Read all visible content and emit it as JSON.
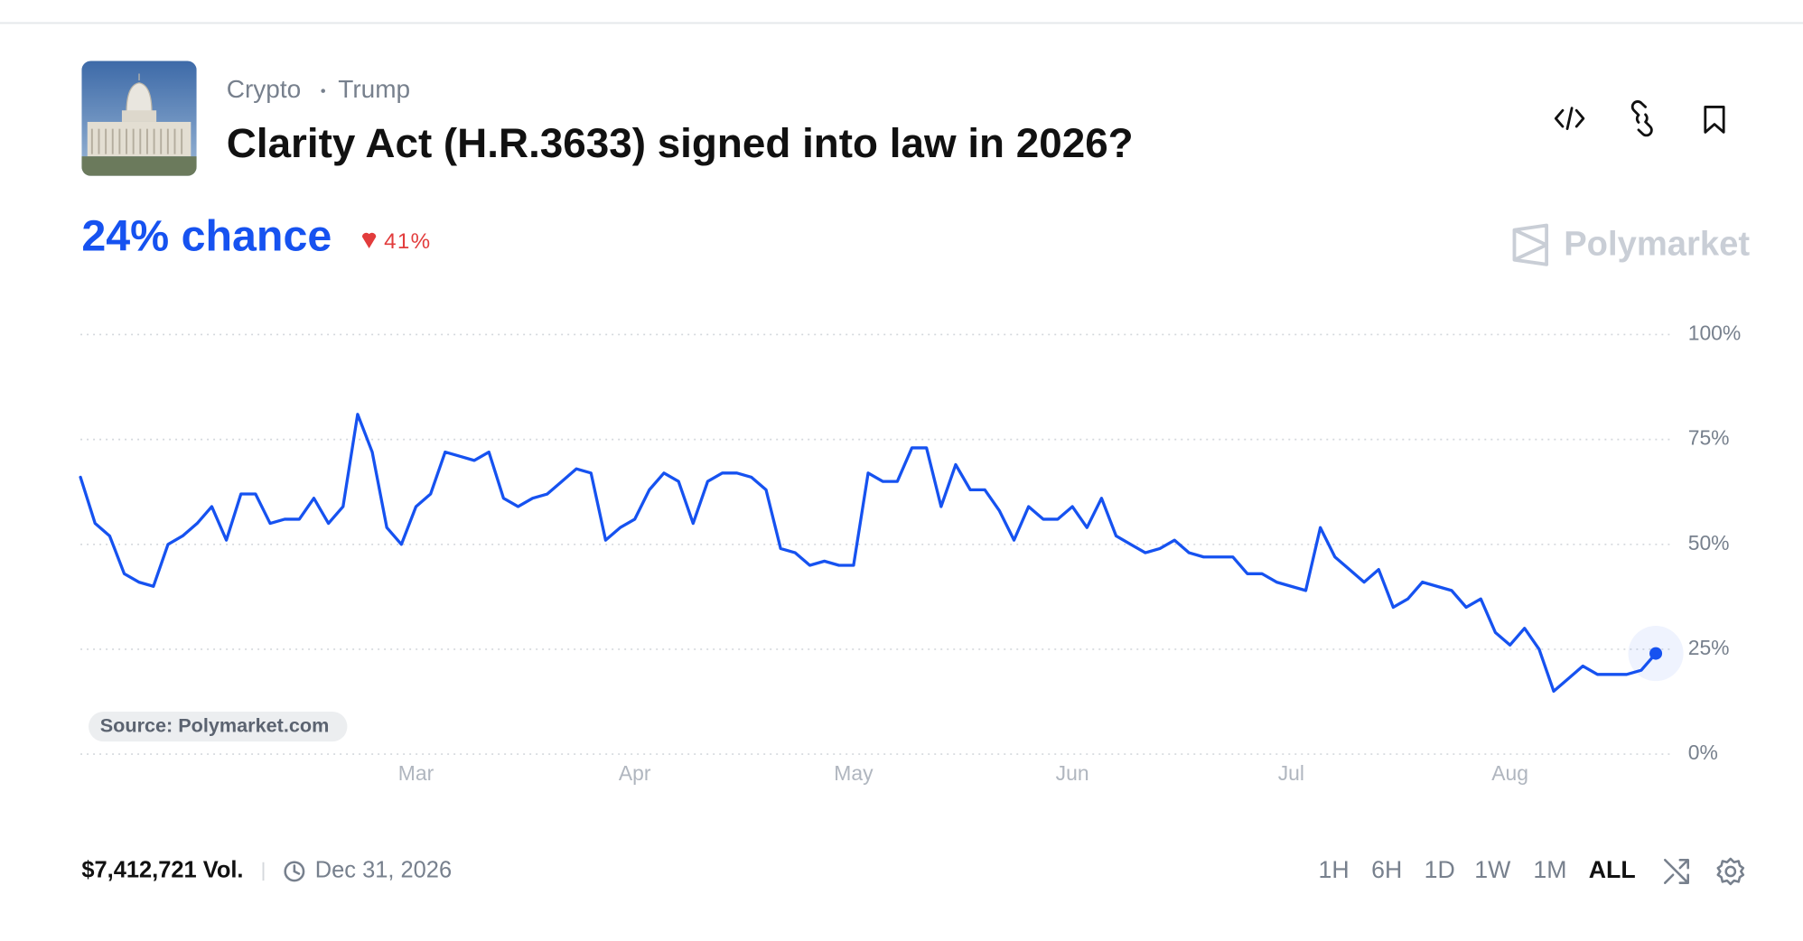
{
  "header": {
    "categories": [
      "Crypto",
      "Trump"
    ],
    "title": "Clarity Act (H.R.3633) signed into law in 2026?"
  },
  "chance": {
    "label": "24% chance",
    "change": "41%"
  },
  "brand": "Polymarket",
  "source": "Source: Polymarket.com",
  "footer": {
    "volume": "$7,412,721 Vol.",
    "end_date": "Dec 31, 2026",
    "ranges": [
      "1H",
      "6H",
      "1D",
      "1W",
      "1M",
      "ALL"
    ],
    "selected_range": "ALL"
  },
  "chart_data": {
    "type": "line",
    "categories": [
      null,
      null,
      null,
      null,
      null,
      null,
      null,
      null,
      null,
      null,
      null,
      null,
      null,
      null,
      null,
      null,
      null,
      null,
      null,
      null,
      null,
      null,
      null,
      "Mar",
      null,
      null,
      null,
      null,
      null,
      null,
      null,
      null,
      null,
      null,
      null,
      null,
      null,
      null,
      "Apr",
      null,
      null,
      null,
      null,
      null,
      null,
      null,
      null,
      null,
      null,
      null,
      null,
      null,
      null,
      "May",
      null,
      null,
      null,
      null,
      null,
      null,
      null,
      null,
      null,
      null,
      null,
      null,
      null,
      null,
      "Jun",
      null,
      null,
      null,
      null,
      null,
      null,
      null,
      null,
      null,
      null,
      null,
      null,
      null,
      null,
      "Jul",
      null,
      null,
      null,
      null,
      null,
      null,
      null,
      null,
      null,
      null,
      null,
      null,
      null,
      null,
      "Aug",
      null,
      null,
      null,
      null,
      null,
      null,
      null,
      null,
      null,
      null
    ],
    "series": [
      {
        "color": "#1652f0",
        "values": [
          66,
          55,
          52,
          43,
          41,
          40,
          50,
          52,
          55,
          59,
          51,
          62,
          62,
          55,
          56,
          56,
          61,
          55,
          59,
          81,
          72,
          54,
          50,
          59,
          62,
          72,
          71,
          70,
          72,
          61,
          59,
          61,
          62,
          65,
          68,
          67,
          51,
          54,
          56,
          63,
          67,
          65,
          55,
          65,
          67,
          67,
          66,
          63,
          49,
          48,
          45,
          46,
          45,
          45,
          67,
          65,
          65,
          73,
          73,
          59,
          69,
          63,
          63,
          58,
          51,
          59,
          56,
          56,
          59,
          54,
          61,
          52,
          50,
          48,
          49,
          51,
          48,
          47,
          47,
          47,
          43,
          43,
          41,
          40,
          39,
          54,
          47,
          44,
          41,
          44,
          35,
          37,
          41,
          40,
          39,
          35,
          37,
          29,
          26,
          30,
          25,
          15,
          18,
          21,
          19,
          19,
          19,
          20,
          24
        ]
      }
    ],
    "ylim": [
      0,
      100
    ],
    "yticks": [
      {
        "value": 0,
        "label": "0%"
      },
      {
        "value": 25,
        "label": "25%"
      },
      {
        "value": 50,
        "label": "50%"
      },
      {
        "value": 75,
        "label": "75%"
      },
      {
        "value": 100,
        "label": "100%"
      }
    ],
    "grid": true
  }
}
